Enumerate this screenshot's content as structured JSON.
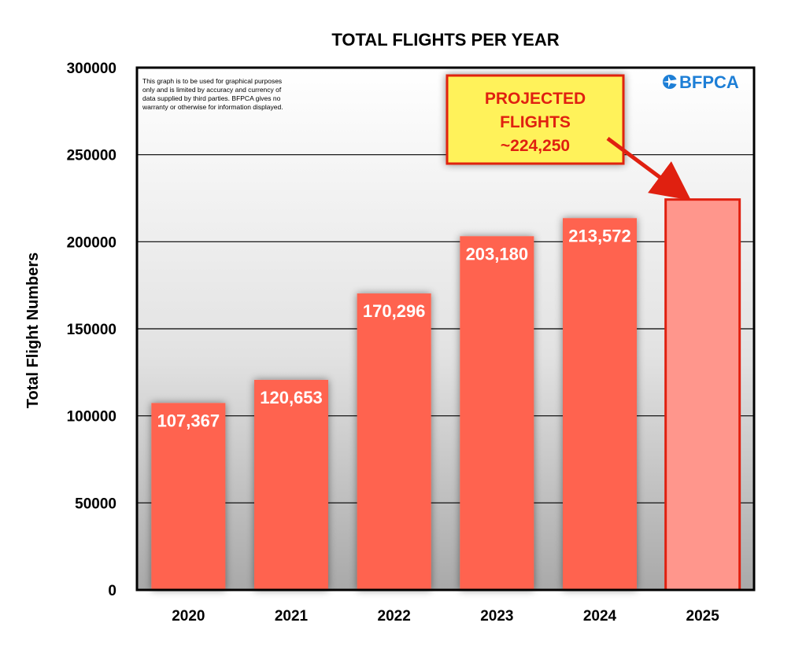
{
  "chart_data": {
    "type": "bar",
    "title": "TOTAL FLIGHTS PER YEAR",
    "xlabel": "",
    "ylabel": "Total Flight Numbers",
    "ylim": [
      0,
      300000
    ],
    "yticks": [
      "0",
      "50000",
      "100000",
      "150000",
      "200000",
      "250000",
      "300000"
    ],
    "categories": [
      "2020",
      "2021",
      "2022",
      "2023",
      "2024",
      "2025"
    ],
    "values": [
      107367,
      120653,
      170296,
      203180,
      213572,
      224250
    ],
    "value_labels": [
      "107,367",
      "120,653",
      "170,296",
      "203,180",
      "213,572",
      ""
    ],
    "projected_index": 5,
    "grid": true,
    "colors": {
      "bar": "#ff6450",
      "projected_bar": "#ff968c",
      "projected_border": "#e02010",
      "callout_fill": "#fff25a",
      "callout_border": "#e02010",
      "arrow": "#e02010"
    },
    "annotations": {
      "callout": [
        "PROJECTED",
        "FLIGHTS",
        "~224,250"
      ],
      "disclaimer": [
        "This graph is to be used for graphical purposes",
        "only and is limited by accuracy and currency of",
        "data supplied by third parties. BFPCA gives no",
        "warranty or otherwise for information displayed."
      ],
      "logo": "BFPCA"
    }
  }
}
